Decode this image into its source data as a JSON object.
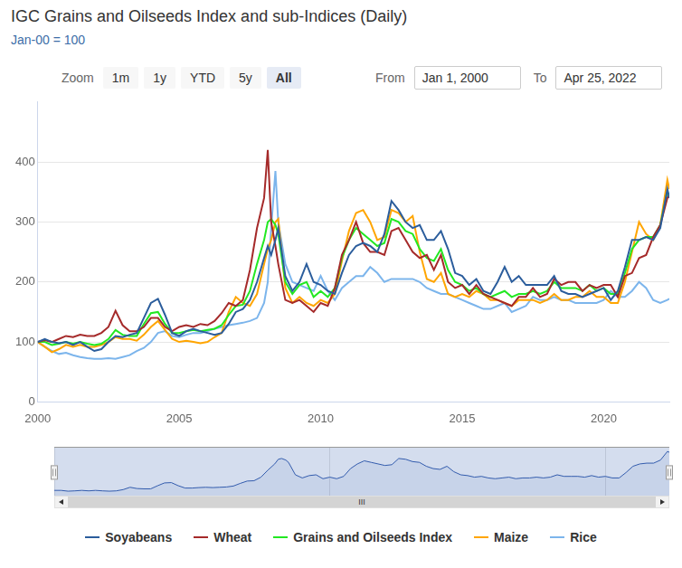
{
  "chart_data": [
    {
      "type": "line",
      "title": "IGC Grains and Oilseeds Index and sub-Indices (Daily)",
      "subtitle": "Jan-00 = 100",
      "zoom_label": "Zoom",
      "zoom_buttons": [
        "1m",
        "1y",
        "YTD",
        "5y",
        "All"
      ],
      "date_range": {
        "from_label": "From",
        "from": "Jan 1, 2000",
        "to_label": "To",
        "to": "Apr 25, 2022"
      },
      "x": [
        2000,
        2000.25,
        2000.5,
        2000.75,
        2001,
        2001.25,
        2001.5,
        2001.75,
        2002,
        2002.25,
        2002.5,
        2002.75,
        2003,
        2003.25,
        2003.5,
        2003.75,
        2004,
        2004.25,
        2004.5,
        2004.75,
        2005,
        2005.25,
        2005.5,
        2005.75,
        2006,
        2006.25,
        2006.5,
        2006.75,
        2007,
        2007.25,
        2007.5,
        2007.75,
        2008,
        2008.13,
        2008.25,
        2008.4,
        2008.5,
        2008.75,
        2009,
        2009.25,
        2009.5,
        2009.75,
        2010,
        2010.25,
        2010.5,
        2010.75,
        2011,
        2011.25,
        2011.5,
        2011.75,
        2012,
        2012.25,
        2012.5,
        2012.75,
        2013,
        2013.25,
        2013.5,
        2013.75,
        2014,
        2014.25,
        2014.5,
        2014.75,
        2015,
        2015.25,
        2015.5,
        2015.75,
        2016,
        2016.25,
        2016.5,
        2016.75,
        2017,
        2017.25,
        2017.5,
        2017.75,
        2018,
        2018.25,
        2018.5,
        2018.75,
        2019,
        2019.25,
        2019.5,
        2019.75,
        2020,
        2020.25,
        2020.5,
        2020.75,
        2021,
        2021.25,
        2021.5,
        2021.75,
        2022,
        2022.25,
        2022.32
      ],
      "series": [
        {
          "name": "Soyabeans",
          "color": "#2b5d9c",
          "values": [
            100,
            105,
            100,
            98,
            100,
            95,
            100,
            92,
            85,
            88,
            100,
            110,
            108,
            112,
            115,
            140,
            165,
            172,
            145,
            115,
            110,
            118,
            122,
            118,
            115,
            112,
            115,
            130,
            150,
            155,
            170,
            200,
            240,
            260,
            245,
            270,
            290,
            210,
            185,
            200,
            230,
            200,
            195,
            185,
            180,
            215,
            245,
            260,
            265,
            260,
            250,
            280,
            335,
            320,
            300,
            290,
            295,
            270,
            270,
            285,
            255,
            215,
            210,
            195,
            205,
            185,
            180,
            200,
            225,
            200,
            210,
            195,
            195,
            195,
            195,
            210,
            185,
            180,
            180,
            175,
            180,
            185,
            190,
            170,
            185,
            225,
            270,
            270,
            275,
            270,
            290,
            355,
            340
          ]
        },
        {
          "name": "Wheat",
          "color": "#a52a2a",
          "values": [
            100,
            103,
            100,
            105,
            110,
            108,
            112,
            110,
            110,
            115,
            125,
            152,
            128,
            118,
            118,
            125,
            140,
            140,
            125,
            118,
            125,
            128,
            125,
            130,
            128,
            135,
            148,
            165,
            160,
            170,
            220,
            290,
            340,
            420,
            300,
            260,
            230,
            170,
            165,
            170,
            160,
            150,
            165,
            160,
            190,
            245,
            270,
            300,
            265,
            250,
            250,
            245,
            285,
            290,
            270,
            250,
            240,
            245,
            220,
            245,
            200,
            190,
            195,
            180,
            195,
            180,
            175,
            170,
            165,
            160,
            175,
            175,
            190,
            175,
            180,
            205,
            195,
            200,
            200,
            185,
            195,
            190,
            195,
            195,
            175,
            210,
            215,
            240,
            245,
            275,
            295,
            340,
            345
          ]
        },
        {
          "name": "Grains and Oilseeds Index",
          "color": "#22e822",
          "values": [
            100,
            100,
            95,
            97,
            100,
            97,
            100,
            97,
            95,
            97,
            105,
            120,
            112,
            110,
            110,
            130,
            148,
            150,
            130,
            115,
            115,
            118,
            120,
            118,
            120,
            122,
            128,
            145,
            160,
            162,
            185,
            230,
            270,
            300,
            305,
            295,
            280,
            200,
            180,
            195,
            200,
            175,
            185,
            175,
            190,
            240,
            270,
            290,
            280,
            270,
            260,
            265,
            305,
            300,
            285,
            280,
            255,
            240,
            235,
            255,
            220,
            200,
            195,
            185,
            190,
            180,
            175,
            180,
            185,
            175,
            180,
            180,
            185,
            180,
            185,
            200,
            190,
            190,
            190,
            185,
            195,
            185,
            190,
            180,
            180,
            215,
            255,
            270,
            275,
            275,
            295,
            350,
            345
          ]
        },
        {
          "name": "Maize",
          "color": "#ffa500",
          "values": [
            100,
            92,
            83,
            88,
            95,
            92,
            95,
            92,
            92,
            95,
            100,
            108,
            105,
            105,
            102,
            112,
            125,
            135,
            120,
            105,
            100,
            102,
            100,
            98,
            100,
            108,
            115,
            150,
            175,
            165,
            160,
            180,
            230,
            255,
            270,
            300,
            305,
            190,
            165,
            175,
            165,
            160,
            170,
            165,
            180,
            235,
            285,
            315,
            320,
            300,
            270,
            275,
            320,
            315,
            300,
            310,
            250,
            205,
            200,
            215,
            180,
            175,
            180,
            175,
            185,
            180,
            170,
            170,
            165,
            160,
            170,
            170,
            170,
            165,
            170,
            180,
            170,
            170,
            175,
            175,
            185,
            175,
            175,
            165,
            165,
            200,
            250,
            300,
            280,
            270,
            295,
            370,
            355
          ]
        },
        {
          "name": "Rice",
          "color": "#7cb5ec",
          "values": [
            100,
            92,
            85,
            80,
            82,
            78,
            75,
            73,
            72,
            72,
            73,
            72,
            75,
            78,
            85,
            90,
            100,
            115,
            118,
            110,
            108,
            112,
            115,
            115,
            118,
            122,
            125,
            128,
            130,
            132,
            135,
            140,
            165,
            200,
            290,
            385,
            300,
            230,
            200,
            195,
            190,
            185,
            210,
            185,
            170,
            190,
            200,
            210,
            210,
            225,
            215,
            200,
            205,
            205,
            205,
            205,
            200,
            190,
            185,
            180,
            180,
            175,
            170,
            165,
            160,
            155,
            155,
            160,
            165,
            150,
            155,
            160,
            175,
            170,
            170,
            175,
            170,
            170,
            165,
            165,
            165,
            165,
            170,
            185,
            175,
            175,
            185,
            200,
            190,
            170,
            165,
            170,
            172
          ]
        }
      ],
      "xlim": [
        2000,
        2022.32
      ],
      "xticks": [
        2000,
        2005,
        2010,
        2015,
        2020
      ],
      "ylim": [
        0,
        500
      ],
      "yticks": [
        0,
        100,
        200,
        300,
        400
      ],
      "grid": true,
      "legend": "bottom"
    },
    {
      "type": "area",
      "x": [
        2000,
        2000.25,
        2000.5,
        2000.75,
        2001,
        2001.25,
        2001.5,
        2001.75,
        2002,
        2002.25,
        2002.5,
        2002.75,
        2003,
        2003.25,
        2003.5,
        2003.75,
        2004,
        2004.25,
        2004.5,
        2004.75,
        2005,
        2005.25,
        2005.5,
        2005.75,
        2006,
        2006.25,
        2006.5,
        2006.75,
        2007,
        2007.25,
        2007.5,
        2007.75,
        2008,
        2008.13,
        2008.25,
        2008.4,
        2008.5,
        2008.75,
        2009,
        2009.25,
        2009.5,
        2009.75,
        2010,
        2010.25,
        2010.5,
        2010.75,
        2011,
        2011.25,
        2011.5,
        2011.75,
        2012,
        2012.25,
        2012.5,
        2012.75,
        2013,
        2013.25,
        2013.5,
        2013.75,
        2014,
        2014.25,
        2014.5,
        2014.75,
        2015,
        2015.25,
        2015.5,
        2015.75,
        2016,
        2016.25,
        2016.5,
        2016.75,
        2017,
        2017.25,
        2017.5,
        2017.75,
        2018,
        2018.25,
        2018.5,
        2018.75,
        2019,
        2019.25,
        2019.5,
        2019.75,
        2020,
        2020.25,
        2020.5,
        2020.75,
        2021,
        2021.25,
        2021.5,
        2021.75,
        2022,
        2022.25,
        2022.32
      ],
      "series": [
        {
          "color": "#335cad",
          "values": [
            100,
            100,
            95,
            97,
            100,
            97,
            100,
            97,
            95,
            97,
            105,
            120,
            112,
            110,
            110,
            130,
            148,
            150,
            130,
            115,
            115,
            118,
            120,
            118,
            120,
            122,
            128,
            145,
            160,
            162,
            185,
            230,
            270,
            300,
            305,
            295,
            280,
            200,
            180,
            195,
            200,
            175,
            185,
            175,
            190,
            240,
            270,
            290,
            280,
            270,
            260,
            265,
            305,
            300,
            285,
            280,
            255,
            240,
            235,
            255,
            220,
            200,
            195,
            185,
            190,
            180,
            175,
            180,
            185,
            175,
            180,
            180,
            185,
            180,
            185,
            200,
            190,
            190,
            190,
            185,
            195,
            185,
            190,
            180,
            180,
            215,
            255,
            270,
            275,
            275,
            295,
            350,
            345
          ]
        }
      ],
      "xlim": [
        2000,
        2022.32
      ],
      "xticks": [
        2000,
        2010,
        2020
      ],
      "ylim": [
        50,
        380
      ],
      "grid": true,
      "tick_labels": "x",
      "scrollbar_label": "III"
    }
  ]
}
